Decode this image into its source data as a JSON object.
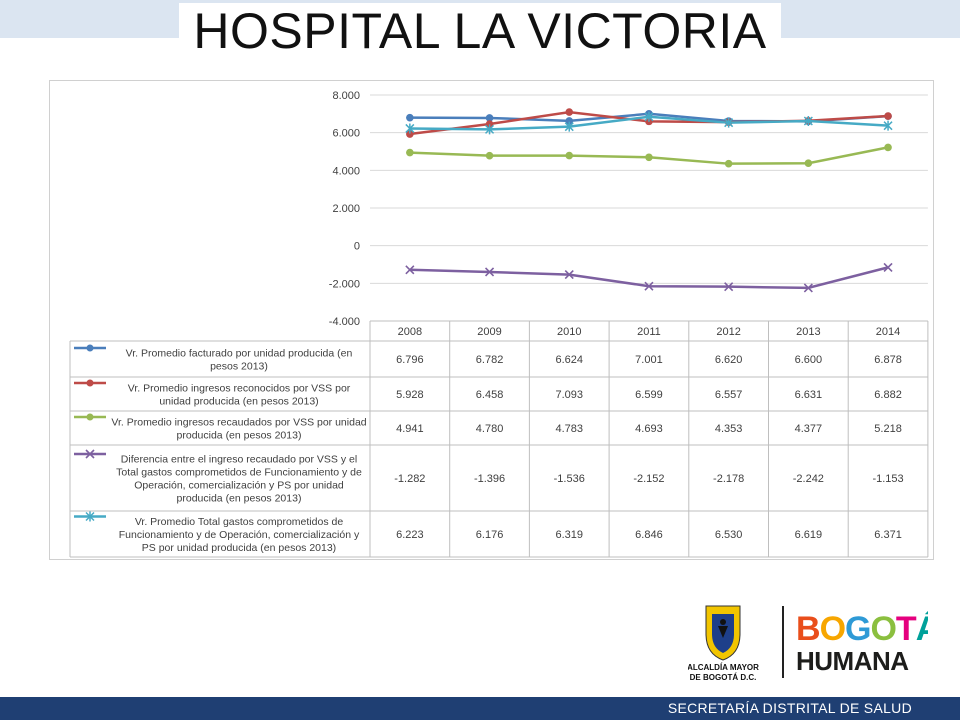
{
  "page": {
    "title": "HOSPITAL LA  VICTORIA",
    "footer": "SECRETARÍA DISTRITAL DE SALUD",
    "logo_seal_text": "ALCALDÍA MAYOR DE BOGOTÁ D.C.",
    "logo_brand_line1": "BOGOTÁ",
    "logo_brand_line2": "HUMANA",
    "colors": {
      "topband": "#dbe5f1",
      "footer_bar": "#1f3f73"
    }
  },
  "chart_data": {
    "type": "line",
    "categories": [
      "2008",
      "2009",
      "2010",
      "2011",
      "2012",
      "2013",
      "2014"
    ],
    "ylim": [
      -4000,
      8000
    ],
    "yticks": [
      8000,
      6000,
      4000,
      2000,
      0,
      -2000,
      -4000
    ],
    "ytick_labels": [
      "8.000",
      "6.000",
      "4.000",
      "2.000",
      "0",
      "-2.000",
      "-4.000"
    ],
    "grid": true,
    "data_table": true,
    "series": [
      {
        "name": "Vr. Promedio facturado por unidad producida (en pesos 2013)",
        "name_lines": [
          "Vr. Promedio facturado por unidad producida (en",
          "pesos 2013)"
        ],
        "color": "#4a7ebb",
        "marker": "circle",
        "values": [
          6796,
          6782,
          6624,
          7001,
          6620,
          6600,
          6878
        ],
        "labels": [
          "6.796",
          "6.782",
          "6.624",
          "7.001",
          "6.620",
          "6.600",
          "6.878"
        ]
      },
      {
        "name": "Vr. Promedio ingresos reconocidos por VSS por unidad producida (en pesos 2013)",
        "name_lines": [
          "Vr. Promedio ingresos reconocidos por VSS por",
          "unidad producida (en pesos 2013)"
        ],
        "color": "#be4b48",
        "marker": "circle",
        "values": [
          5928,
          6458,
          7093,
          6599,
          6557,
          6631,
          6882
        ],
        "labels": [
          "5.928",
          "6.458",
          "7.093",
          "6.599",
          "6.557",
          "6.631",
          "6.882"
        ]
      },
      {
        "name": "Vr. Promedio ingresos recaudados por VSS por unidad producida (en pesos 2013)",
        "name_lines": [
          "Vr. Promedio ingresos recaudados por VSS por unidad",
          "producida (en pesos 2013)"
        ],
        "color": "#98b954",
        "marker": "circle",
        "values": [
          4941,
          4780,
          4783,
          4693,
          4353,
          4377,
          5218
        ],
        "labels": [
          "4.941",
          "4.780",
          "4.783",
          "4.693",
          "4.353",
          "4.377",
          "5.218"
        ]
      },
      {
        "name": "Diferencia entre el ingreso recaudado por VSS y el Total gastos comprometidos de Funcionamiento y de Operación, comercialización y PS por unidad producida (en pesos 2013)",
        "name_lines": [
          "Diferencia entre el ingreso recaudado por VSS y el",
          "Total gastos comprometidos de Funcionamiento y de",
          "Operación, comercialización y PS por unidad",
          "producida (en pesos 2013)"
        ],
        "color": "#7d60a0",
        "marker": "x",
        "values": [
          -1282,
          -1396,
          -1536,
          -2152,
          -2178,
          -2242,
          -1153
        ],
        "labels": [
          "-1.282",
          "-1.396",
          "-1.536",
          "-2.152",
          "-2.178",
          "-2.242",
          "-1.153"
        ]
      },
      {
        "name": "Vr. Promedio Total gastos comprometidos de Funcionamiento y de Operación, comercialización y PS por unidad producida (en pesos 2013)",
        "name_lines": [
          "Vr. Promedio Total gastos comprometidos de",
          "Funcionamiento y de Operación, comercialización y",
          "PS por unidad producida (en pesos 2013)"
        ],
        "color": "#46aac5",
        "marker": "star",
        "values": [
          6223,
          6176,
          6319,
          6846,
          6530,
          6619,
          6371
        ],
        "labels": [
          "6.223",
          "6.176",
          "6.319",
          "6.846",
          "6.530",
          "6.619",
          "6.371"
        ]
      }
    ]
  }
}
